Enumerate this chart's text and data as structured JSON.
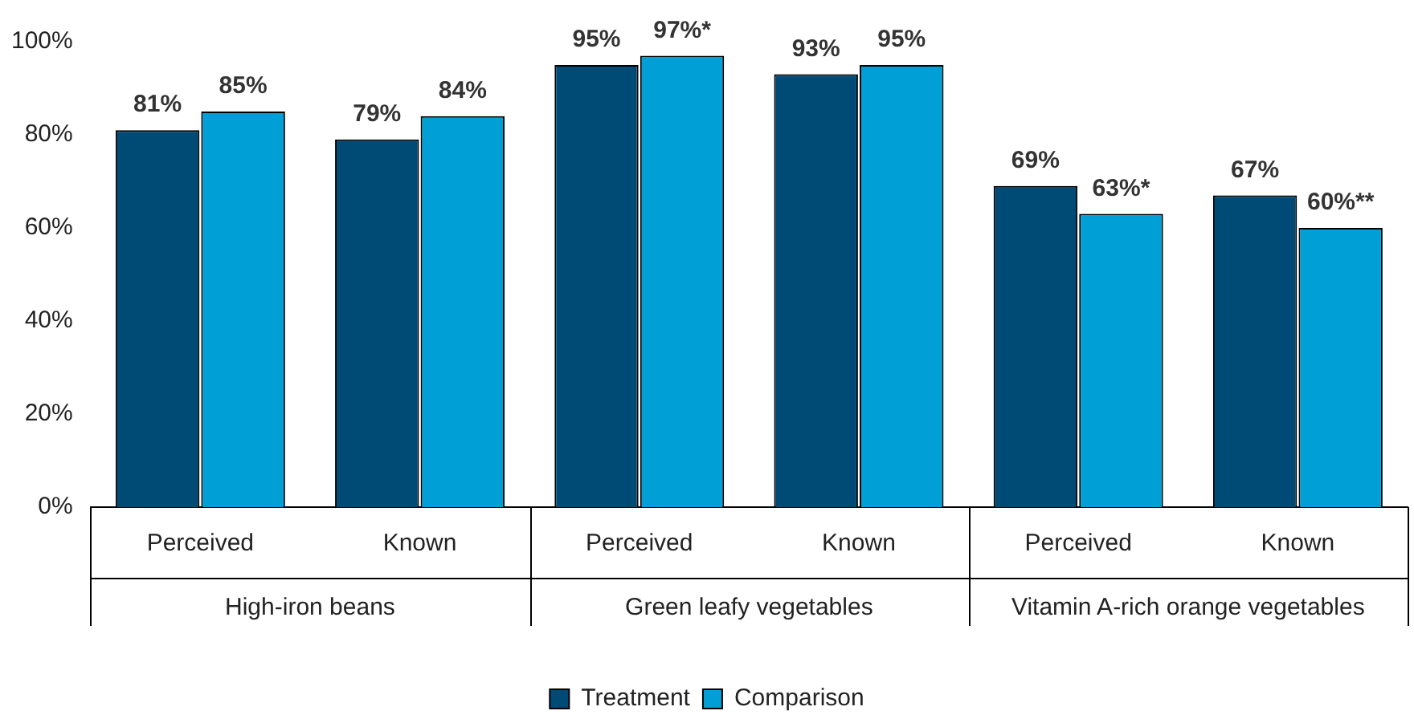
{
  "chart_data": {
    "type": "bar",
    "categories": [
      "Perceived",
      "Known",
      "Perceived",
      "Known",
      "Perceived",
      "Known"
    ],
    "annotations": [
      "High-iron beans",
      "Green leafy vegetables",
      "Vitamin A-rich orange vegetables"
    ],
    "series": [
      {
        "name": "Treatment",
        "color": "#004b76",
        "values": [
          81,
          79,
          95,
          93,
          69,
          67
        ],
        "value_labels": [
          "81%",
          "79%",
          "95%",
          "93%",
          "69%",
          "67%"
        ]
      },
      {
        "name": "Comparison",
        "color": "#00a0d6",
        "values": [
          85,
          84,
          97,
          95,
          63,
          60
        ],
        "value_labels": [
          "85%",
          "84%",
          "97%*",
          "95%",
          "63%*",
          "60%**"
        ]
      }
    ],
    "ylim": [
      0,
      100
    ],
    "yticks": [
      {
        "value": 0,
        "label": "0%"
      },
      {
        "value": 20,
        "label": "20%"
      },
      {
        "value": 40,
        "label": "40%"
      },
      {
        "value": 60,
        "label": "60%"
      },
      {
        "value": 80,
        "label": "80%"
      },
      {
        "value": 100,
        "label": "100%"
      }
    ],
    "grid": false,
    "legend": "bottom"
  }
}
